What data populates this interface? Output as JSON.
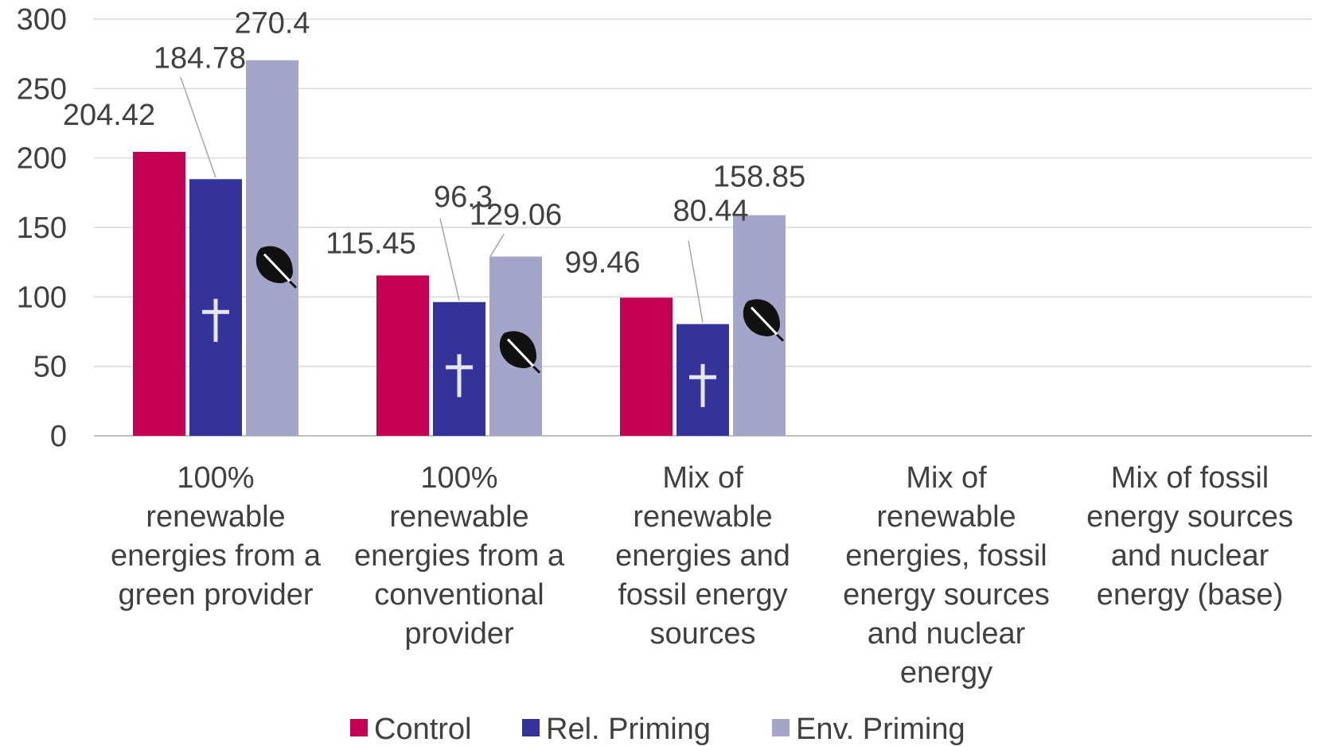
{
  "chart_data": {
    "type": "bar",
    "categories": [
      [
        "100%",
        "renewable",
        "energies from a",
        "green provider"
      ],
      [
        "100%",
        "renewable",
        "energies from a",
        "conventional",
        "provider"
      ],
      [
        "Mix of",
        "renewable",
        "energies and",
        "fossil energy",
        "sources"
      ],
      [
        "Mix of",
        "renewable",
        "energies, fossil",
        "energy sources",
        "and nuclear",
        "energy"
      ],
      [
        "Mix of fossil",
        "energy sources",
        "and nuclear",
        "energy (base)"
      ]
    ],
    "series": [
      {
        "name": "Control",
        "color": "#C40052",
        "values": [
          204.42,
          115.45,
          99.46,
          null,
          null
        ],
        "labels": [
          "204.42",
          "115.45",
          "99.46",
          "",
          ""
        ],
        "icon": ""
      },
      {
        "name": "Rel. Priming",
        "color": "#333399",
        "values": [
          184.78,
          96.3,
          80.44,
          null,
          null
        ],
        "labels": [
          "184.78",
          "96.3",
          "80.44",
          "",
          ""
        ],
        "icon": "cross-icon"
      },
      {
        "name": "Env. Priming",
        "color": "#A5A5C9",
        "values": [
          270.4,
          129.06,
          158.85,
          null,
          null
        ],
        "labels": [
          "270.4",
          "129.06",
          "158.85",
          "",
          ""
        ],
        "icon": "leaf-icon"
      }
    ],
    "ylim": [
      0,
      300
    ],
    "yticks": [
      "0",
      "50",
      "100",
      "150",
      "200",
      "250",
      "300"
    ],
    "ytick_values": [
      0,
      50,
      100,
      150,
      200,
      250,
      300
    ],
    "grid": true,
    "legend_position": "bottom"
  }
}
